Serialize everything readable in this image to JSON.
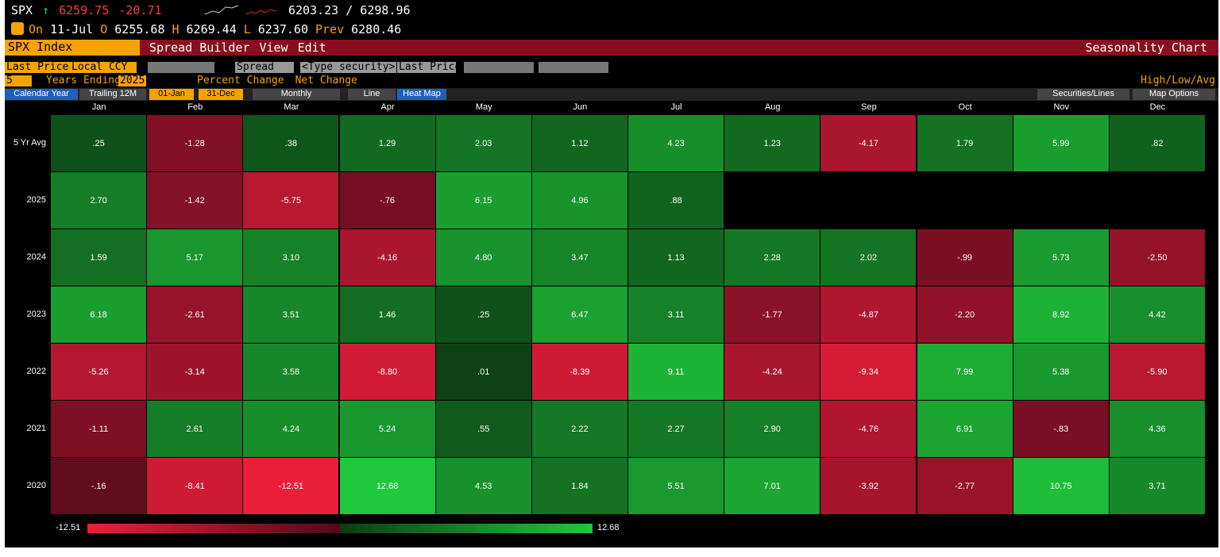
{
  "header": {
    "ticker": "SPX",
    "arrow": "↑",
    "last": "6259.75",
    "change": "-20.71",
    "range": "6203.23 / 6298.96",
    "on": "On",
    "date": "11-Jul",
    "open_label": "O",
    "open": "6255.68",
    "high_label": "H",
    "high": "6269.44",
    "low_label": "L",
    "low": "6237.60",
    "prev_label": "Prev",
    "prev": "6280.46"
  },
  "menu": {
    "security": "SPX Index",
    "items": [
      "Spread Builder",
      "View",
      "Edit"
    ],
    "chart_title": "Seasonality Chart"
  },
  "toolbar1": {
    "field": "Last Price",
    "currency": "Local CCY",
    "mode": "Spread",
    "security_input": "<Type security>",
    "field2": "Last Price"
  },
  "toolbar2": {
    "years": "5",
    "years_ending_label": "Years Ending",
    "year": "2025",
    "options": [
      "Percent Change",
      "Net Change"
    ],
    "high_low": "High/Low/Avg"
  },
  "toolbar3": {
    "tabs": [
      "Calendar Year",
      "Trailing 12M"
    ],
    "from": "01-Jan",
    "to": "31-Dec",
    "period": "Monthly",
    "views": [
      "Line",
      "Heat Map"
    ],
    "right": [
      "Securities/Lines",
      "Map Options"
    ]
  },
  "heatmap": {
    "columns": [
      "Jan",
      "Feb",
      "Mar",
      "Apr",
      "May",
      "Jun",
      "Jul",
      "Aug",
      "Sep",
      "Oct",
      "Nov",
      "Dec"
    ],
    "rows": [
      {
        "label": "5 Yr Avg",
        "cells": [
          ".25",
          "-1.28",
          ".38",
          "1.29",
          "2.03",
          "1.12",
          "4.23",
          "1.23",
          "-4.17",
          "1.79",
          "5.99",
          ".82"
        ]
      },
      {
        "label": "2025",
        "cells": [
          "2.70",
          "-1.42",
          "-5.75",
          "-.76",
          "6.15",
          "4.96",
          ".88"
        ]
      },
      {
        "label": "2024",
        "cells": [
          "1.59",
          "5.17",
          "3.10",
          "-4.16",
          "4.80",
          "3.47",
          "1.13",
          "2.28",
          "2.02",
          "-.99",
          "5.73",
          "-2.50"
        ]
      },
      {
        "label": "2023",
        "cells": [
          "6.18",
          "-2.61",
          "3.51",
          "1.46",
          ".25",
          "6.47",
          "3.11",
          "-1.77",
          "-4.87",
          "-2.20",
          "8.92",
          "4.42"
        ]
      },
      {
        "label": "2022",
        "cells": [
          "-5.26",
          "-3.14",
          "3.58",
          "-8.80",
          ".01",
          "-8.39",
          "9.11",
          "-4.24",
          "-9.34",
          "7.99",
          "5.38",
          "-5.90"
        ]
      },
      {
        "label": "2021",
        "cells": [
          "-1.11",
          "2.61",
          "4.24",
          "5.24",
          ".55",
          "2.22",
          "2.27",
          "2.90",
          "-4.76",
          "6.91",
          "-.83",
          "4.36"
        ]
      },
      {
        "label": "2020",
        "cells": [
          "-.16",
          "-8.41",
          "-12.51",
          "12.68",
          "4.53",
          "1.84",
          "5.51",
          "7.01",
          "-3.92",
          "-2.77",
          "10.75",
          "3.71"
        ]
      }
    ],
    "scale": {
      "min": "-12.51",
      "max": "12.68"
    }
  }
}
